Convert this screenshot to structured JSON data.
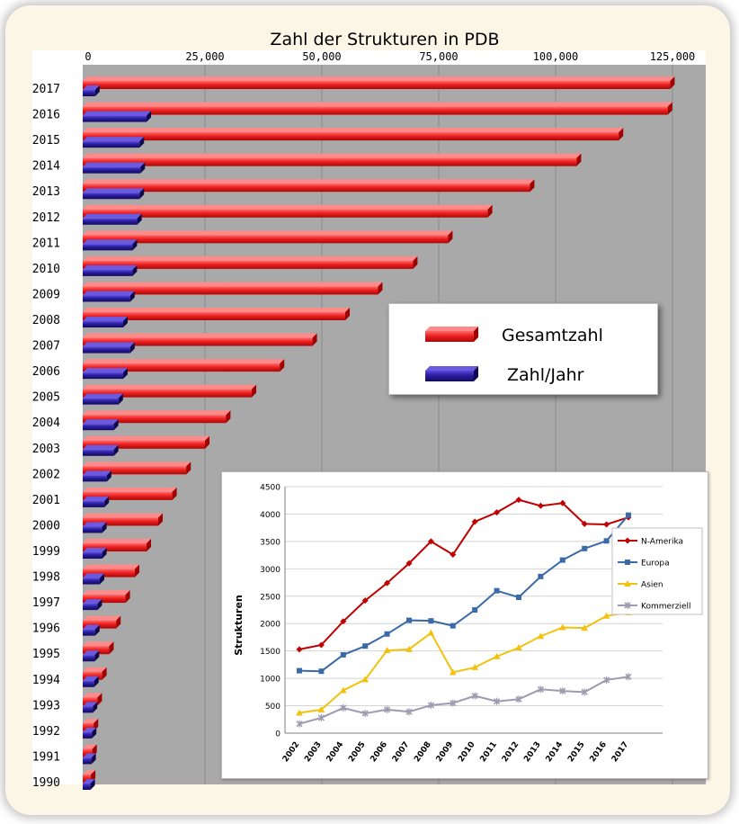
{
  "chart_data": [
    {
      "type": "bar",
      "orientation": "horizontal",
      "title": "Zahl der Strukturen in PDB",
      "xlim": [
        0,
        125000
      ],
      "xticks": [
        "0",
        "25,000",
        "50,000",
        "75,000",
        "100,000",
        "125,000"
      ],
      "xtick_values": [
        0,
        25000,
        50000,
        75000,
        100000,
        125000
      ],
      "categories": [
        "2017",
        "2016",
        "2015",
        "2014",
        "2013",
        "2012",
        "2011",
        "2010",
        "2009",
        "2008",
        "2007",
        "2006",
        "2005",
        "2004",
        "2003",
        "2002",
        "2001",
        "2000",
        "1999",
        "1998",
        "1997",
        "1996",
        "1995",
        "1994",
        "1993",
        "1992",
        "1991",
        "1990"
      ],
      "series": [
        {
          "name": "Gesamtzahl",
          "color": "#e8282c",
          "values": [
            124500,
            124000,
            113500,
            104500,
            94500,
            85500,
            77000,
            69500,
            62000,
            55000,
            48000,
            41000,
            35000,
            29500,
            25000,
            21000,
            18000,
            15000,
            12500,
            10000,
            8000,
            6000,
            4500,
            3000,
            2000,
            1200,
            900,
            600
          ]
        },
        {
          "name": "Zahl/Jahr",
          "color": "#2c1e9e",
          "values": [
            1500,
            12500,
            11000,
            11200,
            11000,
            10500,
            9500,
            9500,
            9000,
            7500,
            9000,
            7500,
            6500,
            5500,
            5500,
            4000,
            3500,
            3000,
            3000,
            2500,
            2000,
            1500,
            1400,
            1300,
            1000,
            800,
            700,
            500
          ]
        }
      ],
      "legend": {
        "entries": [
          "Gesamtzahl",
          "Zahl/Jahr"
        ],
        "placement": "center-right"
      },
      "grid": true
    },
    {
      "type": "line",
      "title": "",
      "ylabel": "Strukturen",
      "xlabel": "",
      "ylim": [
        0,
        4500
      ],
      "yticks": [
        "0",
        "500",
        "1000",
        "1500",
        "2000",
        "2500",
        "3000",
        "3500",
        "4000",
        "4500"
      ],
      "ytick_values": [
        0,
        500,
        1000,
        1500,
        2000,
        2500,
        3000,
        3500,
        4000,
        4500
      ],
      "categories": [
        "2002",
        "2003",
        "2004",
        "2005",
        "2006",
        "2007",
        "2008",
        "2009",
        "2010",
        "2011",
        "2012",
        "2013",
        "2014",
        "2015",
        "2016",
        "2017"
      ],
      "series": [
        {
          "name": "N-Amerika",
          "color": "#c00000",
          "marker": "diamond",
          "values": [
            1530,
            1610,
            2040,
            2420,
            2740,
            3100,
            3500,
            3260,
            3860,
            4030,
            4260,
            4150,
            4200,
            3820,
            3810,
            3940
          ]
        },
        {
          "name": "Europa",
          "color": "#3b6aa8",
          "marker": "square",
          "values": [
            1140,
            1130,
            1430,
            1590,
            1810,
            2060,
            2050,
            1960,
            2250,
            2600,
            2480,
            2860,
            3160,
            3370,
            3510,
            3980
          ]
        },
        {
          "name": "Asien",
          "color": "#f2c10c",
          "marker": "triangle",
          "values": [
            370,
            430,
            780,
            980,
            1510,
            1530,
            1830,
            1110,
            1200,
            1400,
            1560,
            1770,
            1930,
            1920,
            2140,
            2200
          ]
        },
        {
          "name": "Kommerziell",
          "color": "#9e9ab0",
          "marker": "x",
          "values": [
            170,
            280,
            460,
            360,
            430,
            390,
            510,
            550,
            680,
            580,
            620,
            800,
            770,
            750,
            970,
            1030
          ]
        }
      ],
      "legend": {
        "placement": "right"
      },
      "grid": true
    }
  ]
}
